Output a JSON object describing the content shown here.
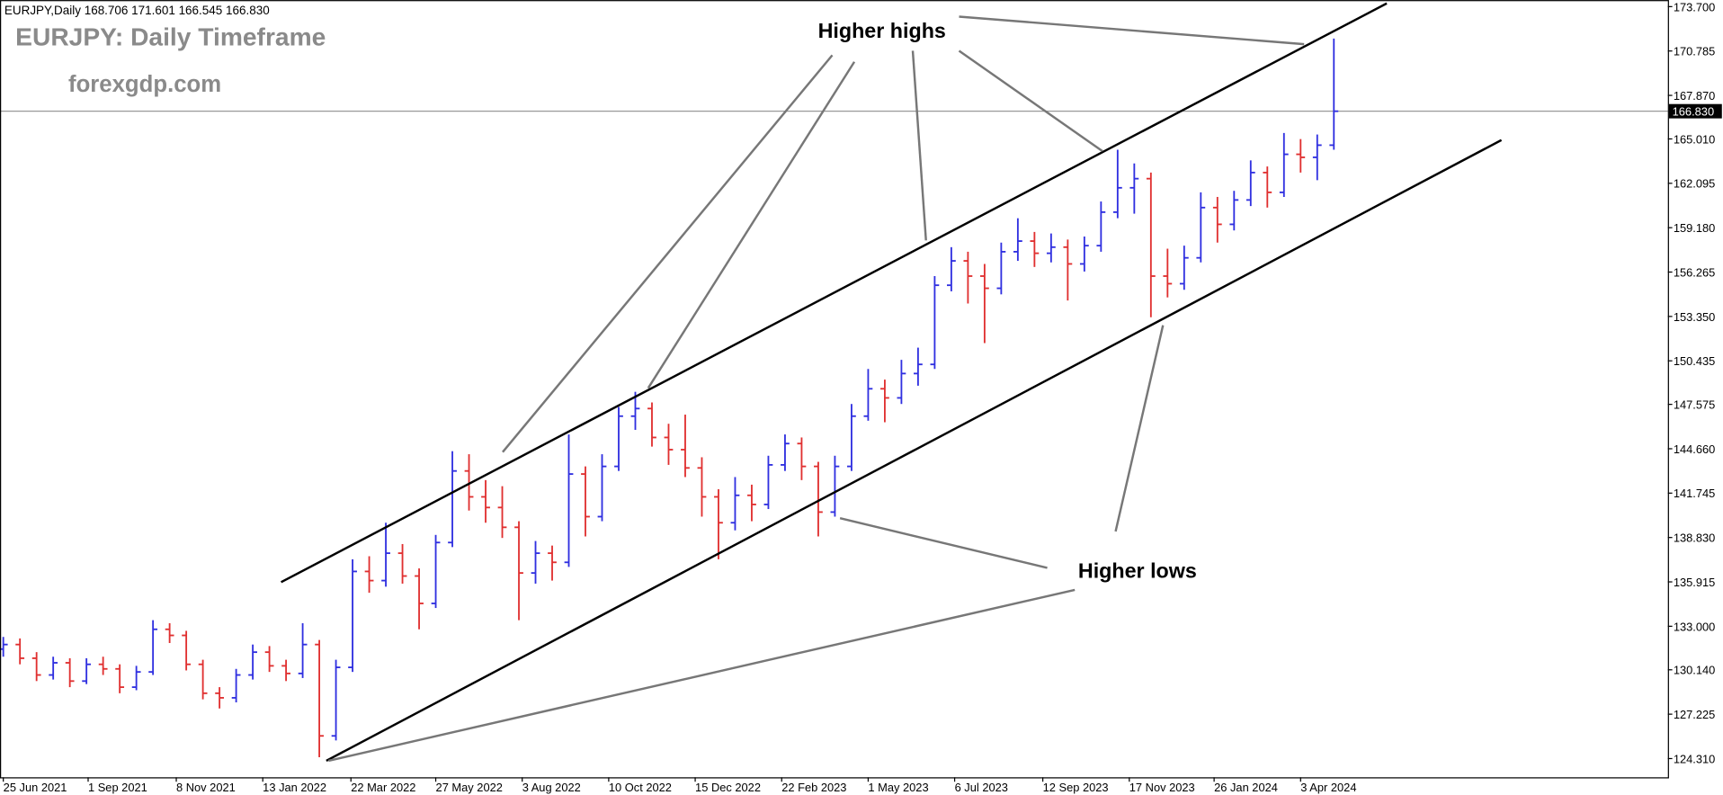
{
  "chart_data": {
    "type": "ohlc",
    "header": "EURJPY,Daily  168.706 171.601 166.545 166.830",
    "title": "EURJPY: Daily Timeframe",
    "subtitle": "forexgdp.com",
    "annotations": [
      "Higher highs",
      "Higher lows"
    ],
    "up_color": "#3030e0",
    "down_color": "#e03030",
    "ylim": [
      123.08,
      174.13
    ],
    "xlim": [
      0,
      80
    ],
    "yticks": [
      {
        "value": 124.31,
        "label": "124.310"
      },
      {
        "value": 127.225,
        "label": "127.225"
      },
      {
        "value": 130.14,
        "label": "130.140"
      },
      {
        "value": 133.0,
        "label": "133.000"
      },
      {
        "value": 135.915,
        "label": "135.915"
      },
      {
        "value": 138.83,
        "label": "138.830"
      },
      {
        "value": 141.745,
        "label": "141.745"
      },
      {
        "value": 144.66,
        "label": "144.660"
      },
      {
        "value": 147.575,
        "label": "147.575"
      },
      {
        "value": 150.435,
        "label": "150.435"
      },
      {
        "value": 153.35,
        "label": "153.350"
      },
      {
        "value": 156.265,
        "label": "156.265"
      },
      {
        "value": 159.18,
        "label": "159.180"
      },
      {
        "value": 162.095,
        "label": "162.095"
      },
      {
        "value": 165.01,
        "label": "165.010"
      },
      {
        "value": 167.87,
        "label": "167.870"
      },
      {
        "value": 170.785,
        "label": "170.785"
      },
      {
        "value": 173.7,
        "label": "173.700"
      }
    ],
    "xticks": [
      {
        "value": 0,
        "label": "25 Jun 2021"
      },
      {
        "value": 5.1,
        "label": "1 Sep 2021"
      },
      {
        "value": 10.4,
        "label": "8 Nov 2021"
      },
      {
        "value": 15.6,
        "label": "13 Jan 2022"
      },
      {
        "value": 20.9,
        "label": "22 Mar 2022"
      },
      {
        "value": 26.0,
        "label": "27 May 2022"
      },
      {
        "value": 31.2,
        "label": "3 Aug 2022"
      },
      {
        "value": 36.4,
        "label": "10 Oct 2022"
      },
      {
        "value": 41.6,
        "label": "15 Dec 2022"
      },
      {
        "value": 46.8,
        "label": "22 Feb 2023"
      },
      {
        "value": 52.0,
        "label": "1 May 2023"
      },
      {
        "value": 57.2,
        "label": "6 Jul 2023"
      },
      {
        "value": 62.5,
        "label": "12 Sep 2023"
      },
      {
        "value": 67.7,
        "label": "17 Nov 2023"
      },
      {
        "value": 72.8,
        "label": "26 Jan 2024"
      },
      {
        "value": 78.0,
        "label": "3 Apr 2024"
      }
    ],
    "current_price": {
      "value": 166.83,
      "label": "166.830"
    },
    "ohlc": [
      [
        131.5,
        132.3,
        131.0,
        131.8
      ],
      [
        131.8,
        132.2,
        130.5,
        130.9
      ],
      [
        130.9,
        131.3,
        129.4,
        129.8
      ],
      [
        129.8,
        131.0,
        129.5,
        130.6
      ],
      [
        130.6,
        130.9,
        129.0,
        129.4
      ],
      [
        129.4,
        130.9,
        129.2,
        130.5
      ],
      [
        130.5,
        131.0,
        129.8,
        130.2
      ],
      [
        130.2,
        130.5,
        128.6,
        129.0
      ],
      [
        129.0,
        130.4,
        128.8,
        130.0
      ],
      [
        130.0,
        133.4,
        129.8,
        132.8
      ],
      [
        132.8,
        133.2,
        131.9,
        132.4
      ],
      [
        132.4,
        132.7,
        130.1,
        130.5
      ],
      [
        130.5,
        130.8,
        128.2,
        128.6
      ],
      [
        128.6,
        129.0,
        127.6,
        128.3
      ],
      [
        128.3,
        130.2,
        128.0,
        129.8
      ],
      [
        129.8,
        131.8,
        129.5,
        131.3
      ],
      [
        131.3,
        131.7,
        130.0,
        130.4
      ],
      [
        130.4,
        130.8,
        129.4,
        129.9
      ],
      [
        129.9,
        133.2,
        129.6,
        131.8
      ],
      [
        131.8,
        132.1,
        124.4,
        125.8
      ],
      [
        125.8,
        130.8,
        125.5,
        130.3
      ],
      [
        130.3,
        137.4,
        130.0,
        136.6
      ],
      [
        136.6,
        137.6,
        135.2,
        136.0
      ],
      [
        136.0,
        139.8,
        135.6,
        137.8
      ],
      [
        137.8,
        138.4,
        135.8,
        136.3
      ],
      [
        136.3,
        136.8,
        132.8,
        134.5
      ],
      [
        134.5,
        139.0,
        134.2,
        138.5
      ],
      [
        138.5,
        144.5,
        138.2,
        143.2
      ],
      [
        143.2,
        144.3,
        140.6,
        141.5
      ],
      [
        141.5,
        142.6,
        139.8,
        140.8
      ],
      [
        140.8,
        142.2,
        138.8,
        139.5
      ],
      [
        139.5,
        139.9,
        133.4,
        136.5
      ],
      [
        136.5,
        138.6,
        135.8,
        137.8
      ],
      [
        137.8,
        138.3,
        136.0,
        137.2
      ],
      [
        137.2,
        145.6,
        136.9,
        143.0
      ],
      [
        143.0,
        143.5,
        138.9,
        140.2
      ],
      [
        140.2,
        144.3,
        139.9,
        143.5
      ],
      [
        143.5,
        147.4,
        143.2,
        146.8
      ],
      [
        146.8,
        148.4,
        145.9,
        147.3
      ],
      [
        147.3,
        147.7,
        144.8,
        145.4
      ],
      [
        145.4,
        146.3,
        143.6,
        144.6
      ],
      [
        144.6,
        146.9,
        142.8,
        143.4
      ],
      [
        143.4,
        144.1,
        140.2,
        141.5
      ],
      [
        141.5,
        142.0,
        137.4,
        139.8
      ],
      [
        139.8,
        142.8,
        139.3,
        141.6
      ],
      [
        141.6,
        142.3,
        139.9,
        141.0
      ],
      [
        141.0,
        144.2,
        140.7,
        143.6
      ],
      [
        143.6,
        145.6,
        143.2,
        145.0
      ],
      [
        145.0,
        145.4,
        142.6,
        143.5
      ],
      [
        143.5,
        143.8,
        138.9,
        140.5
      ],
      [
        140.5,
        144.2,
        140.2,
        143.5
      ],
      [
        143.5,
        147.6,
        143.2,
        146.8
      ],
      [
        146.8,
        149.9,
        146.5,
        148.6
      ],
      [
        148.6,
        149.2,
        146.4,
        148.0
      ],
      [
        148.0,
        150.5,
        147.6,
        149.6
      ],
      [
        149.6,
        151.3,
        148.8,
        150.2
      ],
      [
        150.2,
        156.0,
        149.9,
        155.4
      ],
      [
        155.4,
        157.9,
        155.0,
        157.0
      ],
      [
        157.0,
        157.6,
        154.2,
        156.0
      ],
      [
        156.0,
        156.8,
        151.6,
        155.2
      ],
      [
        155.2,
        158.2,
        154.8,
        157.6
      ],
      [
        157.6,
        159.8,
        157.0,
        158.3
      ],
      [
        158.3,
        158.9,
        156.6,
        157.5
      ],
      [
        157.5,
        158.8,
        156.9,
        157.9
      ],
      [
        157.9,
        158.4,
        154.4,
        156.8
      ],
      [
        156.8,
        158.6,
        156.3,
        158.0
      ],
      [
        158.0,
        160.9,
        157.6,
        160.2
      ],
      [
        160.2,
        164.3,
        159.8,
        161.8
      ],
      [
        161.8,
        163.4,
        160.1,
        162.4
      ],
      [
        162.4,
        162.8,
        153.3,
        156.0
      ],
      [
        156.0,
        157.8,
        154.6,
        155.5
      ],
      [
        155.5,
        158.0,
        155.1,
        157.2
      ],
      [
        157.2,
        161.5,
        156.9,
        160.5
      ],
      [
        160.5,
        161.2,
        158.2,
        159.4
      ],
      [
        159.4,
        161.6,
        159.0,
        161.0
      ],
      [
        161.0,
        163.6,
        160.6,
        162.8
      ],
      [
        162.8,
        163.2,
        160.5,
        161.5
      ],
      [
        161.5,
        165.4,
        161.2,
        164.0
      ],
      [
        164.0,
        165.0,
        162.8,
        163.8
      ],
      [
        163.8,
        165.3,
        162.3,
        164.6
      ],
      [
        164.6,
        171.601,
        164.3,
        166.83
      ]
    ]
  }
}
